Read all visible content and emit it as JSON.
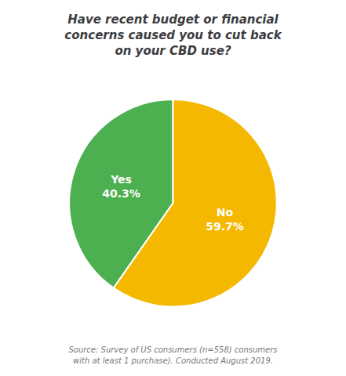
{
  "chart_data": {
    "type": "pie",
    "title": "Have recent budget or financial\nconcerns caused you to cut back\non your CBD use?",
    "categories": [
      "Yes",
      "No"
    ],
    "values": [
      40.3,
      59.7
    ],
    "value_labels": [
      "40.3%",
      "59.7%"
    ],
    "data_labels": true,
    "colors": [
      "#4caf50",
      "#f5b800"
    ],
    "legend": false,
    "annotations": [
      "Source: Survey of US consumers (n=558) consumers\nwith at least 1 purchase). Conducted August 2019."
    ]
  }
}
